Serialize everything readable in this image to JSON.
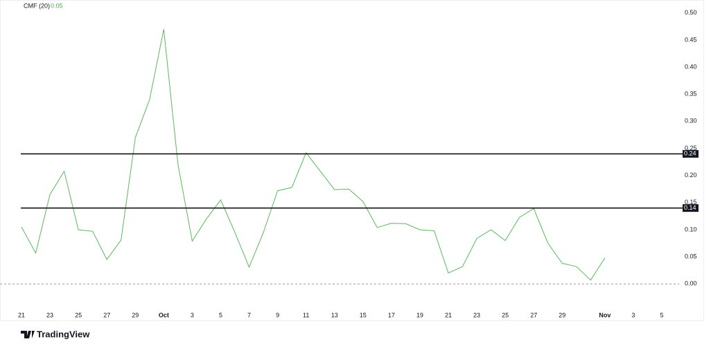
{
  "chart_data": {
    "type": "line",
    "title": "CMF (20)",
    "last_value": 0.05,
    "categories": [
      "21",
      null,
      "23",
      null,
      "25",
      null,
      "27",
      null,
      "29",
      null,
      "Oct",
      null,
      "3",
      null,
      "5",
      null,
      "7",
      null,
      "9",
      null,
      "11",
      null,
      "13",
      null,
      "15",
      null,
      "17",
      null,
      "19",
      null,
      "21",
      null,
      "23",
      null,
      "25",
      null,
      "27",
      null,
      "29",
      null,
      null,
      "Nov",
      null,
      "3",
      null,
      "5"
    ],
    "series": [
      {
        "name": "CMF (20)",
        "color": "#5cb85c",
        "values": [
          0.105,
          0.057,
          0.165,
          0.208,
          0.1,
          0.097,
          0.045,
          0.081,
          0.27,
          0.34,
          0.47,
          0.22,
          0.079,
          0.12,
          0.155,
          0.095,
          0.031,
          0.095,
          0.172,
          0.178,
          0.242,
          0.208,
          0.174,
          0.175,
          0.152,
          0.104,
          0.112,
          0.111,
          0.1,
          0.098,
          0.02,
          0.032,
          0.084,
          0.1,
          0.08,
          0.123,
          0.139,
          0.075,
          0.038,
          0.032,
          0.007,
          0.048,
          null,
          null,
          null,
          null
        ]
      }
    ],
    "ylim": [
      -0.038,
      0.524
    ],
    "yticks": [
      {
        "value": 0,
        "label": "0.00"
      },
      0.05,
      {
        "value": 0.1,
        "label": "0.10"
      },
      0.15,
      {
        "value": 0.2,
        "label": "0.20"
      },
      0.25,
      {
        "value": 0.3,
        "label": "0.30"
      },
      0.35,
      {
        "value": 0.4,
        "label": "0.40"
      },
      0.45,
      {
        "value": 0.5,
        "label": "0.50"
      }
    ],
    "hlines": [
      0.24,
      0.14
    ],
    "baseline": 0,
    "grid": false,
    "watermark": "TradingView"
  }
}
